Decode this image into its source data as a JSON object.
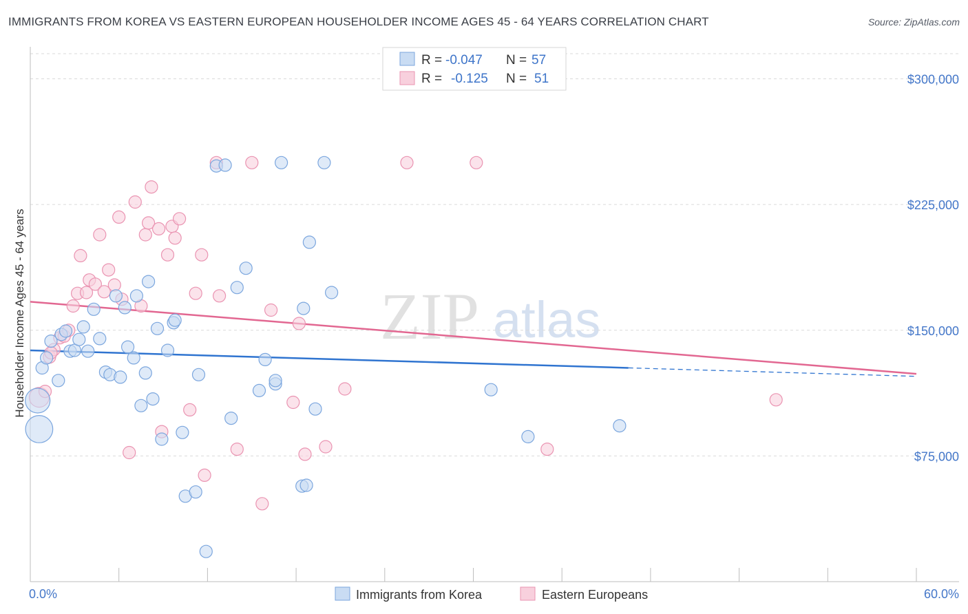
{
  "header": {
    "title": "IMMIGRANTS FROM KOREA VS EASTERN EUROPEAN HOUSEHOLDER INCOME AGES 45 - 64 YEARS CORRELATION CHART",
    "source": "Source: ZipAtlas.com"
  },
  "watermark": {
    "zip": "ZIP",
    "atlas": "atlas"
  },
  "legend": {
    "r_label": "R =",
    "n_label": "N =",
    "rows": [
      {
        "r": "-0.047",
        "n": "57"
      },
      {
        "r": "-0.125",
        "n": "51"
      }
    ]
  },
  "colors": {
    "blue_fill": "#c9dcf3",
    "blue_stroke": "#7ba6de",
    "blue_line": "#2f74d0",
    "pink_fill": "#f8d0dd",
    "pink_stroke": "#ea93b1",
    "pink_line": "#e26791",
    "tick_text": "#4477c9",
    "grid": "#d9d9d9"
  },
  "chart_data": {
    "type": "scatter",
    "title": "IMMIGRANTS FROM KOREA VS EASTERN EUROPEAN HOUSEHOLDER INCOME AGES 45 - 64 YEARS CORRELATION CHART",
    "xlabel": "",
    "ylabel": "Householder Income Ages 45 - 64 years",
    "xlim": [
      0,
      60
    ],
    "ylim": [
      0,
      315000
    ],
    "x_tick_labels": [
      "0.0%",
      "60.0%"
    ],
    "y_ticks": [
      75000,
      150000,
      225000,
      300000
    ],
    "y_tick_labels": [
      "$75,000",
      "$150,000",
      "$225,000",
      "$300,000"
    ],
    "series": [
      {
        "name": "Immigrants from Korea",
        "color": "blue",
        "r": -0.047,
        "n": 57,
        "trend": {
          "x0": 0,
          "y0": 138000,
          "x1": 60,
          "y1": 122500,
          "solid_until_x": 40.5
        },
        "points": [
          [
            0.5,
            108000,
            2.0
          ],
          [
            0.8,
            127500,
            1
          ],
          [
            1.1,
            133500,
            1
          ],
          [
            1.4,
            143500,
            1
          ],
          [
            1.9,
            120000,
            1
          ],
          [
            2.1,
            147500,
            1
          ],
          [
            2.4,
            149500,
            1
          ],
          [
            2.7,
            137500,
            1
          ],
          [
            3.0,
            138000,
            1
          ],
          [
            3.3,
            144500,
            1
          ],
          [
            3.6,
            152000,
            1
          ],
          [
            3.9,
            137500,
            1
          ],
          [
            4.3,
            162500,
            1
          ],
          [
            4.7,
            145000,
            1
          ],
          [
            5.1,
            125000,
            1
          ],
          [
            5.4,
            123500,
            1
          ],
          [
            5.8,
            170500,
            1
          ],
          [
            6.1,
            122000,
            1
          ],
          [
            6.4,
            163500,
            1
          ],
          [
            6.6,
            140000,
            1
          ],
          [
            7.0,
            133500,
            1
          ],
          [
            7.2,
            170500,
            1
          ],
          [
            7.5,
            105000,
            1
          ],
          [
            7.8,
            124500,
            1
          ],
          [
            8.0,
            179000,
            1
          ],
          [
            8.3,
            109000,
            1
          ],
          [
            8.6,
            151000,
            1
          ],
          [
            8.9,
            85000,
            1
          ],
          [
            9.3,
            138000,
            1
          ],
          [
            9.7,
            154500,
            1
          ],
          [
            9.8,
            156000,
            1
          ],
          [
            10.3,
            89000,
            1
          ],
          [
            10.5,
            51000,
            1
          ],
          [
            11.2,
            53500,
            1
          ],
          [
            11.4,
            123500,
            1
          ],
          [
            11.9,
            18000,
            1
          ],
          [
            12.6,
            248000,
            1
          ],
          [
            13.2,
            248500,
            1
          ],
          [
            13.6,
            97500,
            1
          ],
          [
            14.0,
            175500,
            1
          ],
          [
            14.6,
            187000,
            1
          ],
          [
            15.5,
            114000,
            1
          ],
          [
            15.9,
            132500,
            1
          ],
          [
            16.6,
            118000,
            1
          ],
          [
            16.6,
            120000,
            1
          ],
          [
            17.0,
            250000,
            1
          ],
          [
            18.4,
            57000,
            1
          ],
          [
            18.7,
            57500,
            1
          ],
          [
            18.5,
            163000,
            1
          ],
          [
            18.9,
            202500,
            1
          ],
          [
            19.3,
            103000,
            1
          ],
          [
            19.9,
            250000,
            1
          ],
          [
            20.4,
            172500,
            1
          ],
          [
            31.2,
            114500,
            1
          ],
          [
            33.7,
            86500,
            1
          ],
          [
            39.9,
            93000,
            1
          ],
          [
            0.6,
            91000,
            2.2
          ]
        ]
      },
      {
        "name": "Eastern Europeans",
        "color": "pink",
        "r": -0.125,
        "n": 51,
        "trend": {
          "x0": 0,
          "y0": 167000,
          "x1": 60,
          "y1": 124000
        },
        "points": [
          [
            0.6,
            110000,
            1.6
          ],
          [
            1.0,
            113500,
            1
          ],
          [
            1.3,
            134000,
            1
          ],
          [
            1.6,
            138500,
            1
          ],
          [
            2.0,
            145500,
            1
          ],
          [
            2.3,
            146500,
            1
          ],
          [
            2.6,
            150000,
            1
          ],
          [
            2.9,
            164500,
            1
          ],
          [
            3.2,
            172000,
            1
          ],
          [
            3.4,
            194500,
            1
          ],
          [
            3.8,
            172500,
            1
          ],
          [
            4.0,
            180000,
            1
          ],
          [
            4.4,
            177500,
            1
          ],
          [
            4.7,
            207000,
            1
          ],
          [
            5.0,
            173000,
            1
          ],
          [
            5.3,
            186000,
            1
          ],
          [
            5.7,
            177000,
            1
          ],
          [
            6.0,
            217500,
            1
          ],
          [
            6.2,
            168500,
            1
          ],
          [
            6.7,
            77000,
            1
          ],
          [
            7.1,
            226500,
            1
          ],
          [
            7.5,
            164500,
            1
          ],
          [
            7.8,
            207000,
            1
          ],
          [
            8.0,
            214000,
            1
          ],
          [
            8.2,
            235500,
            1
          ],
          [
            8.7,
            210500,
            1
          ],
          [
            8.9,
            89500,
            1
          ],
          [
            9.3,
            195000,
            1
          ],
          [
            9.6,
            212000,
            1
          ],
          [
            9.8,
            205000,
            1
          ],
          [
            10.1,
            216500,
            1
          ],
          [
            10.8,
            102500,
            1
          ],
          [
            11.2,
            172000,
            1
          ],
          [
            11.6,
            195000,
            1
          ],
          [
            11.8,
            63500,
            1
          ],
          [
            12.6,
            250000,
            1
          ],
          [
            12.8,
            170500,
            1
          ],
          [
            14.0,
            79000,
            1
          ],
          [
            15.0,
            250000,
            1
          ],
          [
            15.7,
            46500,
            1
          ],
          [
            16.3,
            162000,
            1
          ],
          [
            17.8,
            107000,
            1
          ],
          [
            18.2,
            154000,
            1
          ],
          [
            18.6,
            76000,
            1
          ],
          [
            20.0,
            80500,
            1
          ],
          [
            21.3,
            115000,
            1
          ],
          [
            25.5,
            250000,
            1
          ],
          [
            30.2,
            250000,
            1
          ],
          [
            35.0,
            79000,
            1
          ],
          [
            50.5,
            108500,
            1
          ],
          [
            1.4,
            136500,
            1
          ]
        ]
      }
    ]
  },
  "bottom_legend": {
    "items": [
      {
        "label": "Immigrants from Korea"
      },
      {
        "label": "Eastern Europeans"
      }
    ]
  }
}
